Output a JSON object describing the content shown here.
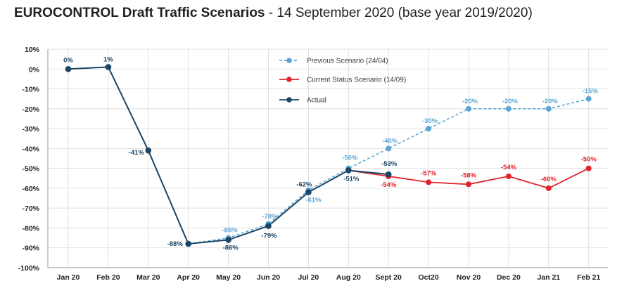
{
  "header": {
    "title_bold": "EUROCONTROL Draft Traffic Scenarios",
    "title_rest": " - 14 September 2020 (base year 2019/2020)"
  },
  "colors": {
    "previous": "#5aa6d6",
    "current": "#e3222b",
    "actual": "#1b4565",
    "grid": "#d9d9d9",
    "axis_text": "#231f20"
  },
  "chart_data": {
    "type": "line",
    "title": "EUROCONTROL Draft Traffic Scenarios - 14 September 2020 (base year 2019/2020)",
    "categories": [
      "Jan 20",
      "Feb 20",
      "Mar 20",
      "Apr 20",
      "May 20",
      "Jun 20",
      "Jul 20",
      "Aug 20",
      "Sept 20",
      "Oct20",
      "Nov 20",
      "Dec 20",
      "Jan 21",
      "Feb 21"
    ],
    "ylim": [
      -100,
      10
    ],
    "yticks": [
      10,
      0,
      -10,
      -20,
      -30,
      -40,
      -50,
      -60,
      -70,
      -80,
      -90,
      -100
    ],
    "ytick_labels": [
      "10%",
      "0%",
      "-10%",
      "-20%",
      "-30%",
      "-40%",
      "-50%",
      "-60%",
      "-70%",
      "-80%",
      "-90%",
      "-100%"
    ],
    "grid": true,
    "legend_position": "top-center",
    "series": [
      {
        "name": "Previous Scenario (24/04)",
        "style": "dashed",
        "values": [
          null,
          null,
          null,
          -88,
          -85,
          -78,
          -61,
          -50,
          -40,
          -30,
          -20,
          -20,
          -20,
          -15
        ],
        "labels": [
          null,
          null,
          null,
          null,
          "-85%",
          "-78%",
          "-61%",
          "-50%",
          "-40%",
          "-30%",
          "-20%",
          "-20%",
          "-20%",
          "-15%"
        ]
      },
      {
        "name": "Current Status Scenario (14/09)",
        "style": "solid",
        "values": [
          null,
          null,
          null,
          null,
          null,
          null,
          null,
          -51,
          -54,
          -57,
          -58,
          -54,
          -60,
          -50
        ],
        "labels": [
          null,
          null,
          null,
          null,
          null,
          null,
          null,
          null,
          "-54%",
          "-57%",
          "-58%",
          "-54%",
          "-60%",
          "-50%"
        ]
      },
      {
        "name": "Actual",
        "style": "solid",
        "values": [
          0,
          1,
          -41,
          -88,
          -86,
          -79,
          -62,
          -51,
          -53,
          null,
          null,
          null,
          null,
          null
        ],
        "labels": [
          "0%",
          "1%",
          "-41%",
          "-88%",
          "-86%",
          "-79%",
          "-62%",
          "-51%",
          "-53%",
          null,
          null,
          null,
          null,
          null
        ]
      }
    ]
  }
}
